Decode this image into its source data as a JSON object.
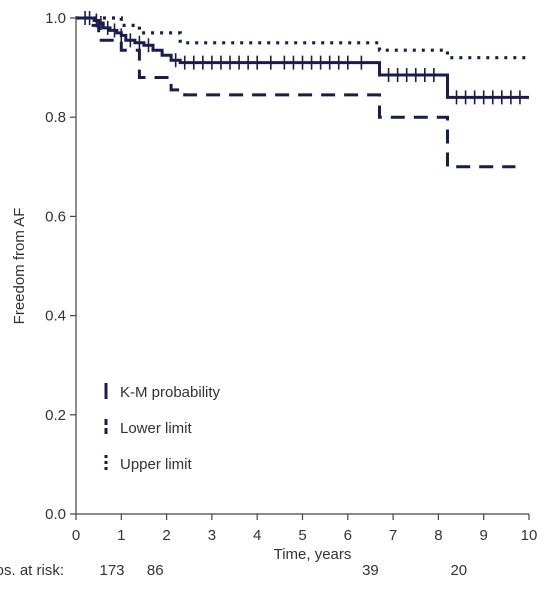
{
  "chart_data": {
    "type": "line",
    "title": "",
    "xlabel": "Time, years",
    "ylabel": "Freedom from AF",
    "xlim": [
      0,
      10
    ],
    "ylim": [
      0,
      1
    ],
    "x_ticks": [
      "0",
      "1",
      "2",
      "3",
      "4",
      "5",
      "6",
      "7",
      "8",
      "9",
      "10"
    ],
    "y_ticks": [
      "0.0",
      "0.2",
      "0.4",
      "0.6",
      "0.8",
      "1.0"
    ],
    "grid": false,
    "legend_position": "lower-left",
    "color": "#1a1c4e",
    "series": [
      {
        "name": "K-M probability",
        "style": "solid",
        "x": [
          0,
          0.4,
          0.5,
          0.6,
          0.75,
          0.9,
          1.0,
          1.1,
          1.3,
          1.5,
          1.7,
          1.9,
          2.1,
          2.3,
          3.0,
          4.0,
          5.0,
          6.0,
          6.7,
          7.5,
          8.2,
          9.0,
          10.0
        ],
        "y": [
          1.0,
          0.995,
          0.99,
          0.98,
          0.975,
          0.97,
          0.965,
          0.955,
          0.95,
          0.945,
          0.935,
          0.925,
          0.915,
          0.91,
          0.91,
          0.91,
          0.91,
          0.91,
          0.885,
          0.885,
          0.84,
          0.84,
          0.84
        ],
        "censor_marks": [
          0.2,
          0.3,
          0.45,
          0.55,
          0.7,
          0.85,
          1.0,
          1.2,
          1.4,
          1.6,
          2.2,
          2.4,
          2.6,
          2.8,
          3.0,
          3.2,
          3.4,
          3.6,
          3.8,
          4.0,
          4.3,
          4.6,
          4.8,
          5.0,
          5.2,
          5.4,
          5.6,
          5.8,
          6.0,
          6.3,
          6.9,
          7.1,
          7.3,
          7.5,
          7.7,
          7.9,
          8.4,
          8.6,
          8.8,
          9.0,
          9.2,
          9.4,
          9.6,
          9.8
        ]
      },
      {
        "name": "Lower limit",
        "style": "dashed",
        "x": [
          0,
          0.3,
          0.5,
          1.0,
          1.4,
          2.1,
          2.4,
          6.7,
          8.2,
          9.0,
          9.7
        ],
        "y": [
          1.0,
          0.985,
          0.955,
          0.935,
          0.88,
          0.855,
          0.845,
          0.8,
          0.7,
          0.7,
          0.7
        ]
      },
      {
        "name": "Upper limit",
        "style": "dotted",
        "x": [
          0,
          0.5,
          1.0,
          1.4,
          2.3,
          6.7,
          8.2,
          10.0
        ],
        "y": [
          1.0,
          1.0,
          0.985,
          0.97,
          0.95,
          0.935,
          0.92,
          0.92
        ]
      }
    ],
    "risk_table": {
      "label": "Nos. at risk:",
      "entries": [
        {
          "x": 1.75,
          "value": "86"
        },
        {
          "x": 6.5,
          "value": "39"
        },
        {
          "x": 8.45,
          "value": "20"
        }
      ],
      "first_value": "173"
    }
  }
}
